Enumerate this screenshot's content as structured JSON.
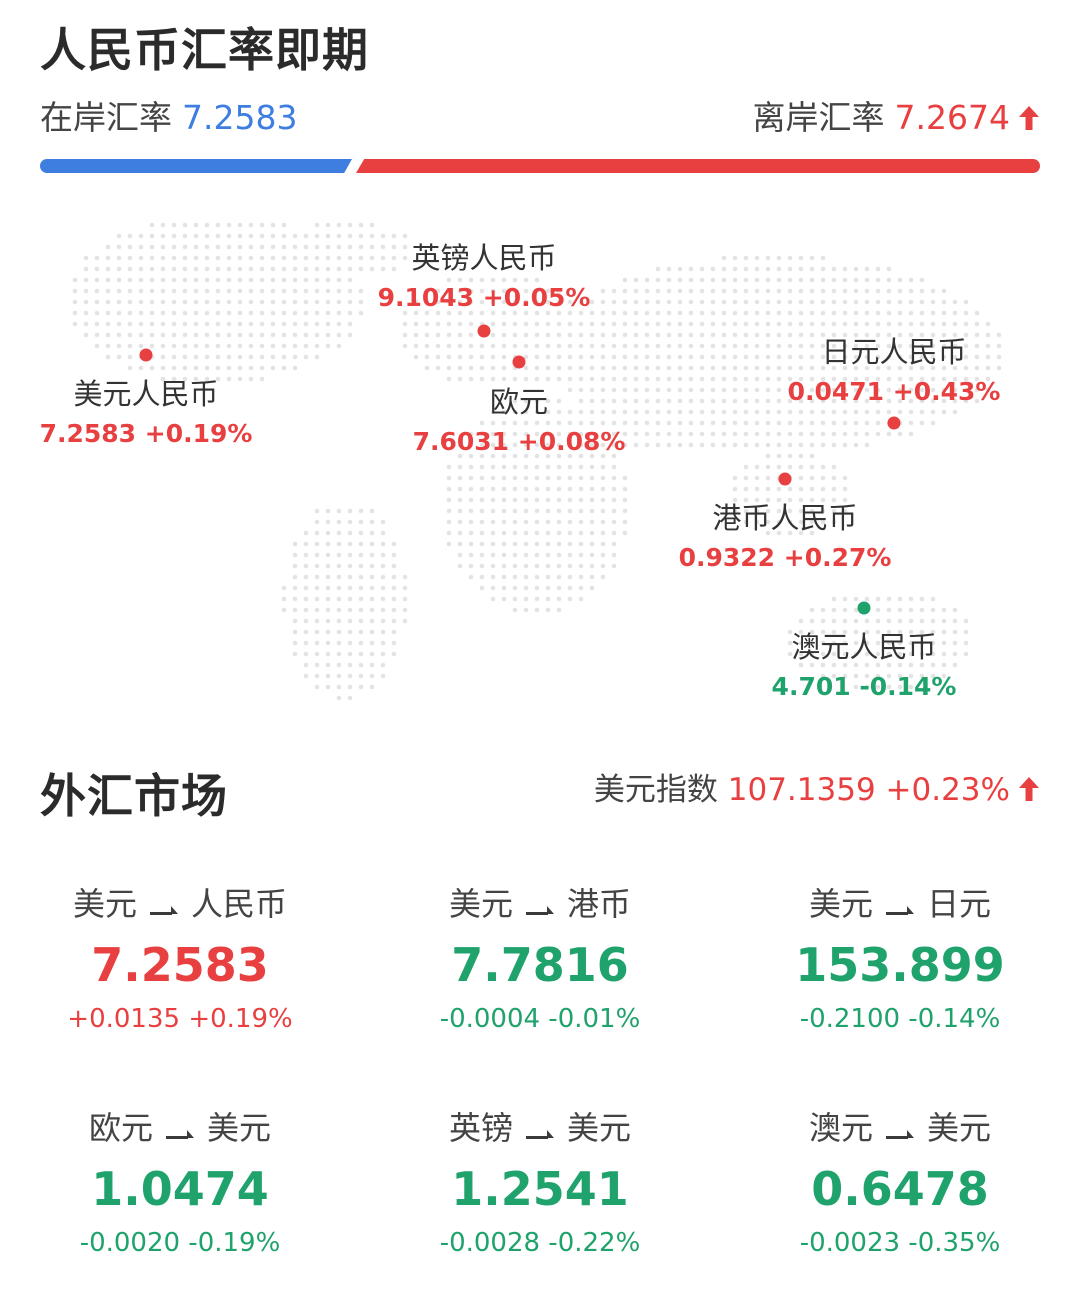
{
  "header": {
    "title": "人民币汇率即期",
    "onshore": {
      "label": "在岸汇率",
      "value": "7.2583",
      "color": "#3e7ee0"
    },
    "offshore": {
      "label": "离岸汇率",
      "value": "7.2674",
      "color": "#e84040",
      "trend_icon": "arrow-up-icon"
    }
  },
  "map_cities": [
    {
      "name": "英镑人民币",
      "value": "9.1043 +0.05%",
      "trend": "up"
    },
    {
      "name": "欧元",
      "value": "7.6031 +0.08%",
      "trend": "up"
    },
    {
      "name": "美元人民币",
      "value": "7.2583 +0.19%",
      "trend": "up"
    },
    {
      "name": "日元人民币",
      "value": "0.0471 +0.43%",
      "trend": "up"
    },
    {
      "name": "港币人民币",
      "value": "0.9322 +0.27%",
      "trend": "up"
    },
    {
      "name": "澳元人民币",
      "value": "4.701 -0.14%",
      "trend": "down"
    }
  ],
  "fx_market": {
    "title": "外汇市场",
    "usd_index": {
      "label": "美元指数",
      "value": "107.1359 +0.23%",
      "trend_icon": "arrow-up-icon"
    },
    "pairs": [
      {
        "from": "美元",
        "to": "人民币",
        "rate": "7.2583",
        "change": "+0.0135 +0.19%",
        "trend": "up"
      },
      {
        "from": "美元",
        "to": "港币",
        "rate": "7.7816",
        "change": "-0.0004 -0.01%",
        "trend": "down"
      },
      {
        "from": "美元",
        "to": "日元",
        "rate": "153.899",
        "change": "-0.2100 -0.14%",
        "trend": "down"
      },
      {
        "from": "欧元",
        "to": "美元",
        "rate": "1.0474",
        "change": "-0.0020 -0.19%",
        "trend": "down"
      },
      {
        "from": "英镑",
        "to": "美元",
        "rate": "1.2541",
        "change": "-0.0028 -0.22%",
        "trend": "down"
      },
      {
        "from": "澳元",
        "to": "美元",
        "rate": "0.6478",
        "change": "-0.0023 -0.35%",
        "trend": "down"
      }
    ]
  },
  "colors": {
    "up": "#e84040",
    "down": "#1fa26b",
    "accent_blue": "#3e7ee0"
  }
}
